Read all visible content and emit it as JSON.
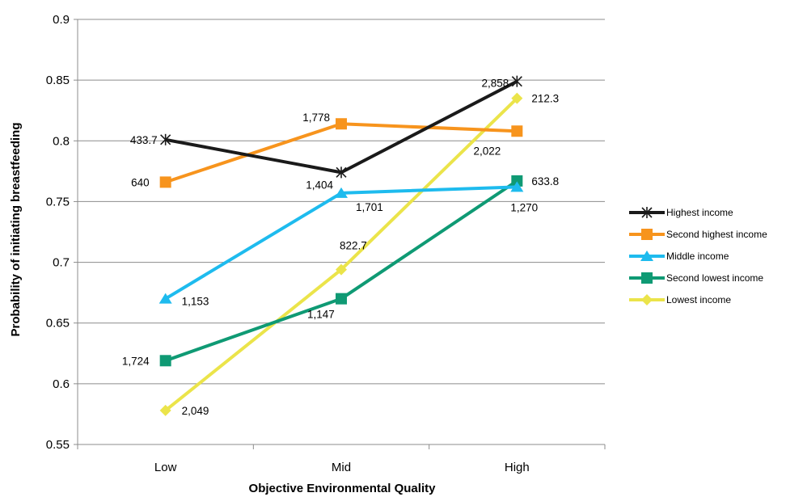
{
  "chart_data": {
    "type": "line",
    "title": "",
    "xlabel": "Objective Environmental Quality",
    "ylabel": "Probability of initiating breastfeeding",
    "categories": [
      "Low",
      "Mid",
      "High"
    ],
    "ylim": [
      0.55,
      0.9
    ],
    "yticks": [
      "0.55",
      "0.6",
      "0.65",
      "0.7",
      "0.75",
      "0.8",
      "0.85",
      "0.9"
    ],
    "grid": true,
    "legend_position": "right",
    "series": [
      {
        "name": "Highest income",
        "color": "#1a1a1a",
        "marker": "star",
        "values": [
          0.801,
          0.774,
          0.849
        ],
        "labels": [
          "433.7",
          "1,404",
          "2,858"
        ]
      },
      {
        "name": "Second highest income",
        "color": "#f7941d",
        "marker": "square",
        "values": [
          0.766,
          0.814,
          0.808
        ],
        "labels": [
          "640",
          "1,778",
          "2,022"
        ]
      },
      {
        "name": "Middle income",
        "color": "#1ebbee",
        "marker": "triangle",
        "values": [
          0.67,
          0.757,
          0.762
        ],
        "labels": [
          "1,153",
          "1,701",
          "1,270"
        ]
      },
      {
        "name": "Second lowest income",
        "color": "#0f9a74",
        "marker": "square",
        "values": [
          0.619,
          0.67,
          0.767
        ],
        "labels": [
          "1,724",
          "1,147",
          "633.8"
        ]
      },
      {
        "name": "Lowest income",
        "color": "#ebe44a",
        "marker": "diamond",
        "values": [
          0.578,
          0.694,
          0.835
        ],
        "labels": [
          "2,049",
          "822.7",
          "212.3"
        ]
      }
    ]
  }
}
